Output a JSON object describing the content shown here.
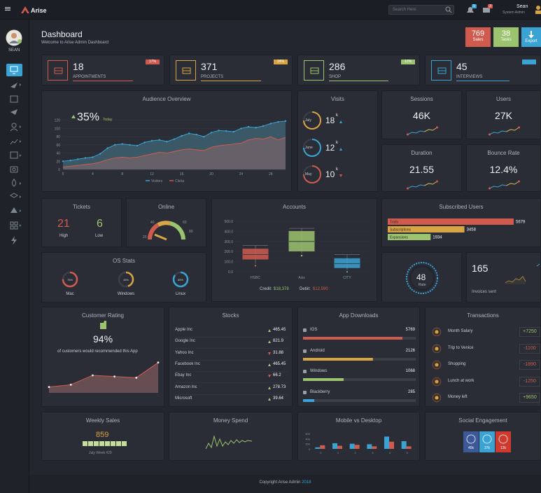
{
  "app": {
    "name": "Arise"
  },
  "topbar": {
    "search_placeholder": "Search Here",
    "notif1_count": "5",
    "notif2_count": "3",
    "user_name": "Sean",
    "user_role": "System Admin"
  },
  "sidebar": {
    "user_label": "SEAN"
  },
  "header": {
    "title": "Dashboard",
    "subtitle": "Welcome to Arise Admin Dashboard",
    "stats": [
      {
        "value": "769",
        "label": "Sales",
        "color": "#cf5b4f"
      },
      {
        "value": "38",
        "label": "Tasks",
        "color": "#9cc36d"
      },
      {
        "value": "",
        "label": "Export",
        "color": "#3aa3d4"
      }
    ]
  },
  "overview": [
    {
      "value": "18",
      "label": "APPOINTMENTS",
      "badge": "17%",
      "color": "#cf5b4f"
    },
    {
      "value": "371",
      "label": "PROJECTS",
      "badge": "24%",
      "color": "#d7a543"
    },
    {
      "value": "286",
      "label": "SHOP",
      "badge": "12%",
      "color": "#9cc36d"
    },
    {
      "value": "45",
      "label": "INTERVIEWS",
      "badge": "",
      "color": "#3aa3d4"
    }
  ],
  "audience": {
    "title": "Audience Overview",
    "percent": "35%",
    "percent_note": "Today",
    "legend": [
      "Visitors",
      "Clicks"
    ],
    "chart_data": {
      "type": "area",
      "x": [
        0,
        1,
        2,
        3,
        4,
        5,
        6,
        7,
        8,
        9,
        10,
        11,
        12,
        13,
        14,
        15,
        16,
        17,
        18,
        19,
        20,
        21,
        22,
        23,
        24,
        25,
        26,
        27,
        28,
        29,
        30
      ],
      "xticks": [
        "0",
        "4",
        "8",
        "12",
        "16",
        "20",
        "24",
        "28"
      ],
      "yticks": [
        "0",
        "20",
        "40",
        "60",
        "80",
        "100",
        "120"
      ],
      "ylim": [
        0,
        140
      ],
      "series": [
        {
          "name": "Visitors",
          "values": [
            20,
            22,
            25,
            28,
            30,
            38,
            52,
            60,
            62,
            60,
            58,
            66,
            70,
            72,
            68,
            74,
            82,
            88,
            85,
            80,
            90,
            95,
            94,
            92,
            100,
            104,
            102,
            106,
            112,
            116,
            118
          ]
        },
        {
          "name": "Clicks",
          "values": [
            6,
            8,
            10,
            12,
            14,
            18,
            24,
            28,
            30,
            28,
            30,
            34,
            38,
            42,
            40,
            44,
            48,
            50,
            48,
            46,
            54,
            58,
            60,
            62,
            64,
            72,
            76,
            74,
            80,
            72,
            78
          ]
        }
      ]
    }
  },
  "visits": {
    "title": "Visits",
    "items": [
      {
        "month": "July",
        "value": "18",
        "unit": "k",
        "trend": "up",
        "color": "#d7a543"
      },
      {
        "month": "June",
        "value": "12",
        "unit": "k",
        "trend": "up",
        "color": "#3aa3d4"
      },
      {
        "month": "May",
        "value": "10",
        "unit": "k",
        "trend": "down",
        "color": "#cf5b4f"
      }
    ]
  },
  "kpis": [
    {
      "title": "Sessions",
      "value": "46K"
    },
    {
      "title": "Users",
      "value": "27K"
    },
    {
      "title": "Duration",
      "value": "21.55"
    },
    {
      "title": "Bounce Rate",
      "value": "12.4%"
    }
  ],
  "tickets": {
    "title": "Tickets",
    "high_value": "21",
    "high_label": "High",
    "low_value": "6",
    "low_label": "Low"
  },
  "online": {
    "title": "Online",
    "gauge_labels": [
      "20",
      "40",
      "60",
      "80"
    ]
  },
  "accounts": {
    "title": "Accounts",
    "credit_label": "Credit:",
    "credit_value": "$18,378",
    "debit_label": "Debit:",
    "debit_value": "$12,590",
    "chart_data": {
      "type": "box",
      "categories": [
        "HSBC",
        "Axis",
        "CITY"
      ],
      "yticks": [
        "0.0",
        "100.0",
        "200.0",
        "300.0",
        "400.0",
        "500.0"
      ],
      "ylim": [
        0,
        500
      ],
      "boxes": [
        {
          "name": "HSBC",
          "min": 80,
          "q1": 125,
          "median": 170,
          "q3": 225,
          "max": 260
        },
        {
          "name": "Axis",
          "min": 180,
          "q1": 205,
          "median": 300,
          "q3": 400,
          "max": 430
        },
        {
          "name": "CITY",
          "min": 20,
          "q1": 40,
          "median": 80,
          "q3": 130,
          "max": 170
        }
      ]
    }
  },
  "subscribed": {
    "title": "Subscribed Users",
    "chart_data": {
      "type": "bar",
      "categories": [
        "Trails",
        "Subscriptions",
        "Expansions"
      ],
      "values": [
        5679,
        3458,
        1934
      ],
      "labels": [
        "5679",
        "3458",
        "1934"
      ],
      "colors": [
        "#cf5b4f",
        "#d7a543",
        "#9cc36d"
      ]
    }
  },
  "os_stats": {
    "title": "OS Stats",
    "items": [
      {
        "name": "Mac",
        "value": "75%",
        "fraction": 0.75,
        "color": "#cf5b4f"
      },
      {
        "name": "Windows",
        "value": "45%",
        "fraction": 0.45,
        "color": "#d7a543"
      },
      {
        "name": "Linux",
        "value": "85%",
        "fraction": 0.85,
        "color": "#3aa3d4"
      }
    ]
  },
  "rate": {
    "value": "48",
    "label": "Rate"
  },
  "invoices": {
    "value": "165",
    "label": "Invoices sent"
  },
  "customer_rating": {
    "title": "Customer Rating",
    "percent": "94%",
    "note": "of customers would recommended this App",
    "chart_data": {
      "type": "area",
      "x": [
        0,
        1,
        2,
        3,
        4,
        5
      ],
      "values": [
        10,
        14,
        30,
        28,
        26,
        52
      ],
      "ylim": [
        0,
        60
      ]
    }
  },
  "stocks": {
    "title": "Stocks",
    "items": [
      {
        "name": "Apple Inc",
        "value": "465.45",
        "trend": "up"
      },
      {
        "name": "Google Inc",
        "value": "821.9",
        "trend": "up"
      },
      {
        "name": "Yahoo Inc",
        "value": "31.88",
        "trend": "down"
      },
      {
        "name": "Facebook Inc",
        "value": "465.45",
        "trend": "up"
      },
      {
        "name": "Ebay Inc",
        "value": "66.2",
        "trend": "down"
      },
      {
        "name": "Amazon Inc",
        "value": "278.73",
        "trend": "up"
      },
      {
        "name": "Microsoft",
        "value": "39.64",
        "trend": "up"
      }
    ]
  },
  "downloads": {
    "title": "App Downloads",
    "items": [
      {
        "name": "IOS",
        "value": "5769",
        "fraction": 0.98,
        "color": "#cf5b4f"
      },
      {
        "name": "Android",
        "value": "2126",
        "fraction": 0.62,
        "color": "#d7a543"
      },
      {
        "name": "Windows",
        "value": "1068",
        "fraction": 0.36,
        "color": "#9cc36d"
      },
      {
        "name": "Blackberry",
        "value": "285",
        "fraction": 0.1,
        "color": "#3aa3d4"
      }
    ]
  },
  "transactions": {
    "title": "Transactions",
    "items": [
      {
        "name": "Month Salary",
        "value": "+7250",
        "color": "#9cc36d"
      },
      {
        "name": "Trip to Venice",
        "value": "-1100",
        "color": "#cf5b4f"
      },
      {
        "name": "Shopping",
        "value": "-1890",
        "color": "#cf5b4f"
      },
      {
        "name": "Lunch at work",
        "value": "-1250",
        "color": "#cf5b4f"
      },
      {
        "name": "Money left",
        "value": "+9650",
        "color": "#9cc36d"
      }
    ]
  },
  "weekly_sales": {
    "title": "Weekly Sales",
    "value": "859",
    "note": "July Week #29"
  },
  "money_spend": {
    "title": "Money Spend"
  },
  "mobile_desktop": {
    "title": "Mobile vs Desktop",
    "chart_data": {
      "type": "bar",
      "categories": [
        "0",
        "1",
        "2",
        "3",
        "4",
        "5"
      ],
      "yticks": [
        "0",
        "200",
        "400",
        "600"
      ],
      "ylim": [
        0,
        600
      ],
      "series": [
        {
          "name": "Mobile",
          "values": [
            60,
            220,
            200,
            180,
            480,
            300
          ]
        },
        {
          "name": "Desktop",
          "values": [
            140,
            120,
            160,
            100,
            280,
            100
          ]
        }
      ]
    }
  },
  "social": {
    "title": "Social Engagement",
    "items": [
      {
        "name": "facebook",
        "value": "45k",
        "color": "#3b5998"
      },
      {
        "name": "twitter",
        "value": "37k",
        "color": "#3aa3d4"
      },
      {
        "name": "google",
        "value": "12k",
        "color": "#cf3a2f"
      }
    ]
  },
  "footer": {
    "text": "Copyright Arise Admin",
    "year": "2018"
  }
}
